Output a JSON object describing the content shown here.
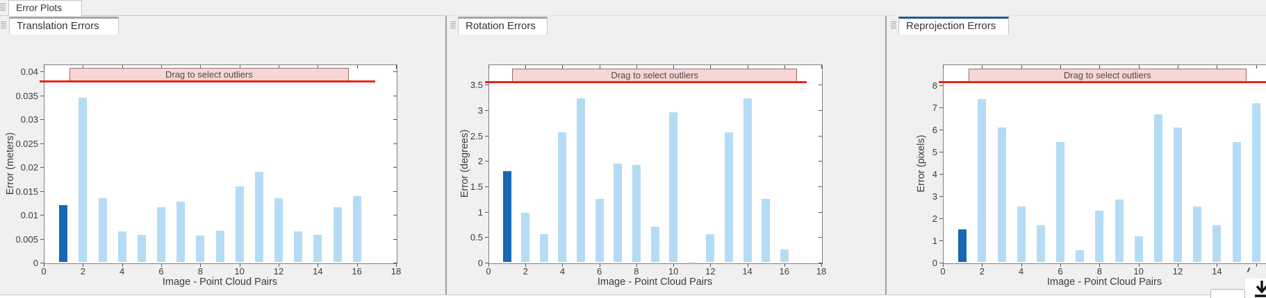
{
  "app": {
    "top_tab_label": "Error Plots"
  },
  "panels": [
    {
      "label": "Translation Errors",
      "selected": false
    },
    {
      "label": "Rotation Errors",
      "selected": false
    },
    {
      "label": "Reprojection Errors",
      "selected": true
    }
  ],
  "chart_data": [
    {
      "type": "bar",
      "title": "Translation Errors",
      "xlabel": "Image - Point Cloud Pairs",
      "ylabel": "Error (meters)",
      "x": [
        1,
        2,
        3,
        4,
        5,
        6,
        7,
        8,
        9,
        10,
        11,
        12,
        13,
        14,
        15,
        16
      ],
      "values": [
        0.012,
        0.0345,
        0.0135,
        0.0066,
        0.0058,
        0.0116,
        0.0127,
        0.0056,
        0.0067,
        0.016,
        0.019,
        0.0135,
        0.0066,
        0.0058,
        0.0116,
        0.014
      ],
      "highlighted_index": 0,
      "xlim": [
        0,
        18
      ],
      "ylim": [
        0,
        0.0415
      ],
      "xticks": [
        0,
        2,
        4,
        6,
        8,
        10,
        12,
        14,
        16,
        18
      ],
      "xtick_labels": [
        "0",
        "2",
        "4",
        "6",
        "8",
        "10",
        "12",
        "14",
        "16",
        "18"
      ],
      "yticks": [
        0,
        0.005,
        0.01,
        0.015,
        0.02,
        0.025,
        0.03,
        0.035,
        0.04
      ],
      "ytick_labels": [
        "0",
        "0.005",
        "0.01",
        "0.015",
        "0.02",
        "0.025",
        "0.03",
        "0.035",
        "0.04"
      ],
      "threshold": 0.038,
      "threshold_extent": [
        -0.2,
        16.95
      ],
      "band_label": "Drag to select outliers",
      "band_x": [
        1.31,
        15.58
      ],
      "grid": false,
      "legend": false
    },
    {
      "type": "bar",
      "title": "Rotation Errors",
      "xlabel": "Image - Point Cloud Pairs",
      "ylabel": "Error (degrees)",
      "x": [
        1,
        2,
        3,
        4,
        5,
        6,
        7,
        8,
        9,
        10,
        11,
        12,
        13,
        14,
        15,
        16
      ],
      "values": [
        1.8,
        0.98,
        0.56,
        2.56,
        3.23,
        1.25,
        1.95,
        1.92,
        0.71,
        2.96,
        0.02,
        0.56,
        2.56,
        3.23,
        1.25,
        0.26
      ],
      "highlighted_index": 0,
      "xlim": [
        0,
        18
      ],
      "ylim": [
        0,
        3.9
      ],
      "xticks": [
        0,
        2,
        4,
        6,
        8,
        10,
        12,
        14,
        16,
        18
      ],
      "xtick_labels": [
        "0",
        "2",
        "4",
        "6",
        "8",
        "10",
        "12",
        "14",
        "16",
        "18"
      ],
      "yticks": [
        0,
        0.5,
        1,
        1.5,
        2,
        2.5,
        3,
        3.5
      ],
      "ytick_labels": [
        "0",
        "0.5",
        "1",
        "1.5",
        "2",
        "2.5",
        "3",
        "3.5"
      ],
      "threshold": 3.56,
      "threshold_extent": [
        -0.2,
        17.2
      ],
      "band_label": "Drag to select outliers",
      "band_x": [
        1.28,
        16.7
      ],
      "grid": false,
      "legend": false
    },
    {
      "type": "bar",
      "title": "Reprojection Errors",
      "xlabel": "Image - Point Cloud Pairs",
      "ylabel": "Error (pixels)",
      "x": [
        1,
        2,
        3,
        4,
        5,
        6,
        7,
        8,
        9,
        10,
        11,
        12,
        13,
        14,
        15,
        16
      ],
      "values": [
        1.5,
        7.4,
        6.1,
        2.55,
        1.7,
        5.45,
        0.55,
        2.35,
        2.85,
        1.2,
        6.7,
        6.1,
        2.55,
        1.7,
        5.45,
        7.2
      ],
      "highlighted_index": 0,
      "xlim": [
        0,
        18
      ],
      "ylim": [
        0,
        8.95
      ],
      "xticks": [
        0,
        2,
        4,
        6,
        8,
        10,
        12,
        14,
        16,
        18
      ],
      "xtick_labels": [
        "0",
        "2",
        "4",
        "6",
        "8",
        "10",
        "12",
        "14",
        "",
        ""
      ],
      "yticks": [
        0,
        1,
        2,
        3,
        4,
        5,
        6,
        7,
        8
      ],
      "ytick_labels": [
        "0",
        "1",
        "2",
        "3",
        "4",
        "5",
        "6",
        "7",
        "8"
      ],
      "threshold": 8.16,
      "threshold_extent": [
        -0.2,
        18
      ],
      "band_label": "Drag to select outliers",
      "band_x": [
        1.31,
        15.5
      ],
      "grid": false,
      "legend": false
    }
  ],
  "colors": {
    "bar_light": "#B5DCF5",
    "bar_highlight": "#1668B4",
    "threshold_line": "#E8251A",
    "band_fill": "#F7D6D5",
    "band_border": "#8D6E6E",
    "selected_tab_accent": "#1A5A96",
    "unselected_tab_accent": "#A6A6A6",
    "panel_background": "#F0F0F0",
    "axis_box": "#7F7F7F"
  },
  "icons": {
    "panel_grip": "drag-grip-lines",
    "dock_arrow": "download-arrow"
  }
}
